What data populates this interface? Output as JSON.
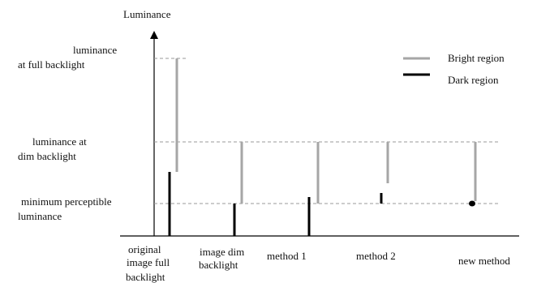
{
  "axis": {
    "y_label": "Luminance"
  },
  "levels": {
    "full": [
      "luminance",
      "at full backlight"
    ],
    "dim": [
      "luminance at",
      "dim backlight"
    ],
    "min": [
      "minimum perceptible",
      "luminance"
    ]
  },
  "legend": {
    "bright": "Bright region",
    "dark": "Dark region"
  },
  "columns": [
    {
      "label": [
        "original",
        "image full",
        "backlight"
      ]
    },
    {
      "label": [
        "image dim",
        "backlight"
      ]
    },
    {
      "label": [
        "method 1"
      ]
    },
    {
      "label": [
        "method 2"
      ]
    },
    {
      "label": [
        "new method"
      ]
    }
  ],
  "colors": {
    "bright": "#a6a6a6",
    "dark": "#000000",
    "dashed": "#9a9a9a",
    "axis": "#000000"
  }
}
